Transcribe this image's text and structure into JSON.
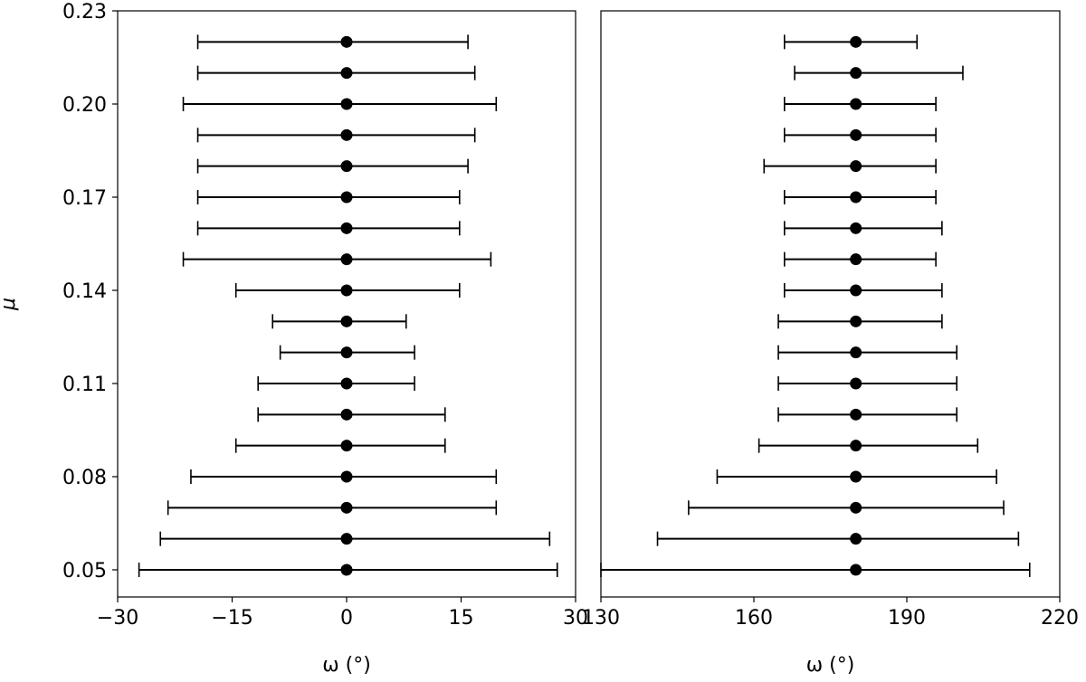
{
  "chart_data": [
    {
      "type": "errorbar",
      "xlabel": "ω (°)",
      "ylabel": "μ",
      "xlim": [
        -30,
        30
      ],
      "ylim": [
        0.045,
        0.23
      ],
      "xticks": [
        "−30",
        "−15",
        "0",
        "15",
        "30"
      ],
      "xtick_values": [
        -30,
        -15,
        0,
        15,
        30
      ],
      "yticks": [
        "0.05",
        "0.08",
        "0.11",
        "0.14",
        "0.17",
        "0.20",
        "0.23"
      ],
      "ytick_values": [
        0.05,
        0.08,
        0.11,
        0.14,
        0.17,
        0.2,
        0.23
      ],
      "grid": false,
      "color": "#000000",
      "points": [
        {
          "mu": 0.05,
          "omega": 0,
          "low": -27.2,
          "high": 27.6
        },
        {
          "mu": 0.06,
          "omega": 0,
          "low": -24.4,
          "high": 26.6
        },
        {
          "mu": 0.07,
          "omega": 0,
          "low": -23.4,
          "high": 19.6
        },
        {
          "mu": 0.08,
          "omega": 0,
          "low": -20.4,
          "high": 19.6
        },
        {
          "mu": 0.09,
          "omega": 0,
          "low": -14.5,
          "high": 12.9
        },
        {
          "mu": 0.1,
          "omega": 0,
          "low": -11.6,
          "high": 12.9
        },
        {
          "mu": 0.11,
          "omega": 0,
          "low": -11.6,
          "high": 8.9
        },
        {
          "mu": 0.12,
          "omega": 0,
          "low": -8.7,
          "high": 8.9
        },
        {
          "mu": 0.13,
          "omega": 0,
          "low": -9.7,
          "high": 7.8
        },
        {
          "mu": 0.14,
          "omega": 0,
          "low": -14.5,
          "high": 14.8
        },
        {
          "mu": 0.15,
          "omega": 0,
          "low": -21.4,
          "high": 18.9
        },
        {
          "mu": 0.16,
          "omega": 0,
          "low": -19.5,
          "high": 14.8
        },
        {
          "mu": 0.17,
          "omega": 0,
          "low": -19.5,
          "high": 14.8
        },
        {
          "mu": 0.18,
          "omega": 0,
          "low": -19.5,
          "high": 15.9
        },
        {
          "mu": 0.19,
          "omega": 0,
          "low": -19.5,
          "high": 16.8
        },
        {
          "mu": 0.2,
          "omega": 0,
          "low": -21.4,
          "high": 19.6
        },
        {
          "mu": 0.21,
          "omega": 0,
          "low": -19.5,
          "high": 16.8
        },
        {
          "mu": 0.22,
          "omega": 0,
          "low": -19.5,
          "high": 15.9
        }
      ]
    },
    {
      "type": "errorbar",
      "xlabel": "ω (°)",
      "xlim": [
        130,
        220
      ],
      "ylim": [
        0.045,
        0.23
      ],
      "xticks": [
        "130",
        "160",
        "190",
        "220"
      ],
      "xtick_values": [
        130,
        160,
        190,
        220
      ],
      "grid": false,
      "color": "#000000",
      "points": [
        {
          "mu": 0.05,
          "omega": 180,
          "low": 130.0,
          "high": 214.1
        },
        {
          "mu": 0.06,
          "omega": 180,
          "low": 141.1,
          "high": 211.9
        },
        {
          "mu": 0.07,
          "omega": 180,
          "low": 147.2,
          "high": 209.0
        },
        {
          "mu": 0.08,
          "omega": 180,
          "low": 152.8,
          "high": 207.6
        },
        {
          "mu": 0.09,
          "omega": 180,
          "low": 161.0,
          "high": 203.9
        },
        {
          "mu": 0.1,
          "omega": 180,
          "low": 164.8,
          "high": 199.8
        },
        {
          "mu": 0.11,
          "omega": 180,
          "low": 164.8,
          "high": 199.8
        },
        {
          "mu": 0.12,
          "omega": 180,
          "low": 164.8,
          "high": 199.8
        },
        {
          "mu": 0.13,
          "omega": 180,
          "low": 164.8,
          "high": 196.9
        },
        {
          "mu": 0.14,
          "omega": 180,
          "low": 166.0,
          "high": 196.9
        },
        {
          "mu": 0.15,
          "omega": 180,
          "low": 166.0,
          "high": 195.7
        },
        {
          "mu": 0.16,
          "omega": 180,
          "low": 166.0,
          "high": 196.9
        },
        {
          "mu": 0.17,
          "omega": 180,
          "low": 166.0,
          "high": 195.7
        },
        {
          "mu": 0.18,
          "omega": 180,
          "low": 162.0,
          "high": 195.7
        },
        {
          "mu": 0.19,
          "omega": 180,
          "low": 166.0,
          "high": 195.7
        },
        {
          "mu": 0.2,
          "omega": 180,
          "low": 166.0,
          "high": 195.7
        },
        {
          "mu": 0.21,
          "omega": 180,
          "low": 168.0,
          "high": 201.0
        },
        {
          "mu": 0.22,
          "omega": 180,
          "low": 166.0,
          "high": 192.0
        }
      ]
    }
  ]
}
